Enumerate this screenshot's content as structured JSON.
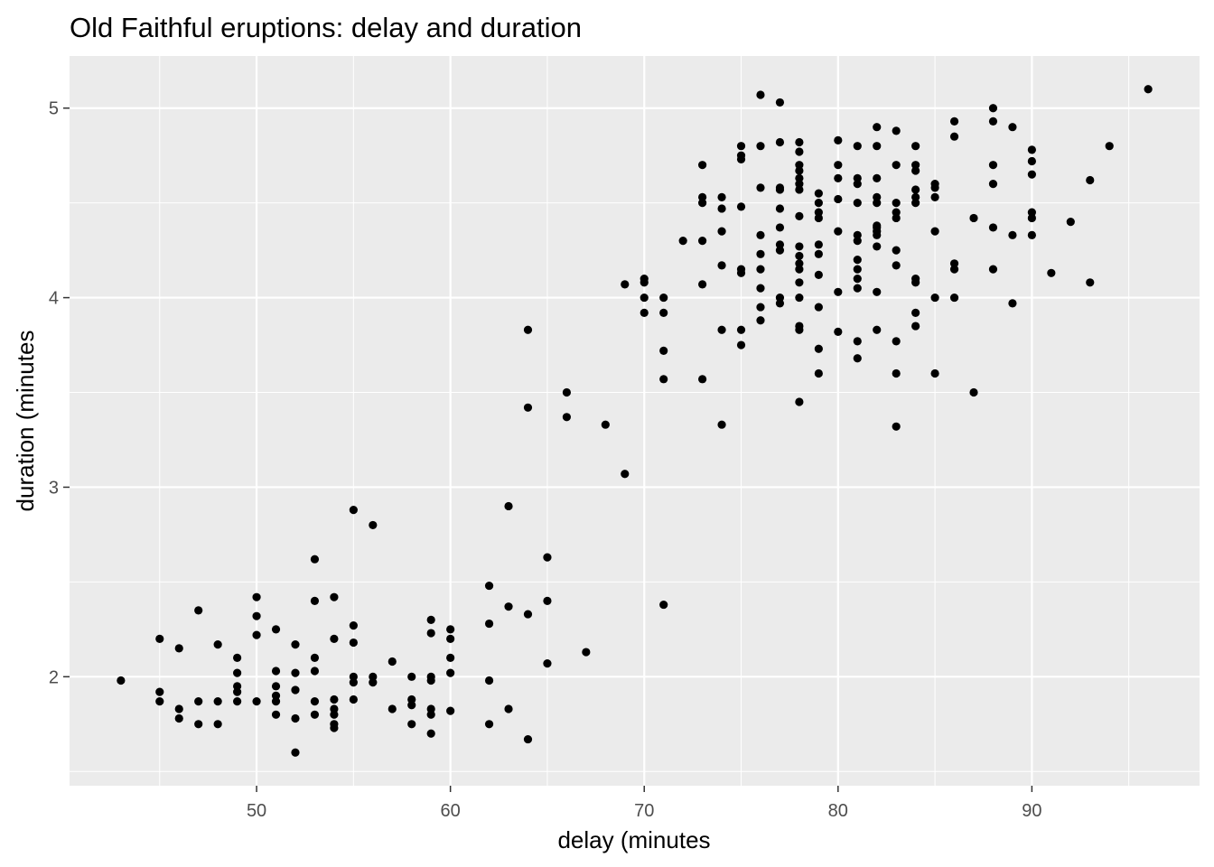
{
  "chart_data": {
    "type": "scatter",
    "title": "Old Faithful eruptions: delay and duration",
    "xlabel": "delay (minutes",
    "ylabel": "duration (minutes",
    "xlim": [
      40.35,
      98.65
    ],
    "ylim": [
      1.425,
      5.275
    ],
    "x_ticks": [
      50,
      60,
      70,
      80,
      90
    ],
    "y_ticks": [
      2,
      3,
      4,
      5
    ],
    "grid": true,
    "colors": {
      "panel": "#ebebeb",
      "grid": "#ffffff",
      "point": "#000000",
      "tick": "#4d4d4d"
    },
    "points": [
      [
        43,
        1.98
      ],
      [
        45,
        1.87
      ],
      [
        45,
        1.92
      ],
      [
        45,
        2.2
      ],
      [
        46,
        1.78
      ],
      [
        46,
        1.83
      ],
      [
        46,
        2.15
      ],
      [
        47,
        1.75
      ],
      [
        47,
        1.87
      ],
      [
        47,
        2.35
      ],
      [
        48,
        1.75
      ],
      [
        48,
        1.87
      ],
      [
        48,
        2.17
      ],
      [
        49,
        1.87
      ],
      [
        49,
        1.92
      ],
      [
        49,
        1.95
      ],
      [
        49,
        2.02
      ],
      [
        49,
        2.1
      ],
      [
        50,
        1.87
      ],
      [
        50,
        2.22
      ],
      [
        50,
        2.32
      ],
      [
        50,
        2.42
      ],
      [
        51,
        1.8
      ],
      [
        51,
        1.87
      ],
      [
        51,
        1.9
      ],
      [
        51,
        1.95
      ],
      [
        51,
        2.03
      ],
      [
        51,
        2.25
      ],
      [
        52,
        1.6
      ],
      [
        52,
        1.78
      ],
      [
        52,
        1.93
      ],
      [
        52,
        2.02
      ],
      [
        52,
        2.17
      ],
      [
        53,
        1.8
      ],
      [
        53,
        1.87
      ],
      [
        53,
        2.03
      ],
      [
        53,
        2.1
      ],
      [
        53,
        2.4
      ],
      [
        53,
        2.62
      ],
      [
        54,
        1.73
      ],
      [
        54,
        1.75
      ],
      [
        54,
        1.8
      ],
      [
        54,
        1.83
      ],
      [
        54,
        1.88
      ],
      [
        54,
        2.2
      ],
      [
        54,
        2.42
      ],
      [
        55,
        1.88
      ],
      [
        55,
        1.97
      ],
      [
        55,
        2.0
      ],
      [
        55,
        2.18
      ],
      [
        55,
        2.27
      ],
      [
        55,
        2.88
      ],
      [
        56,
        1.97
      ],
      [
        56,
        2.0
      ],
      [
        56,
        2.8
      ],
      [
        57,
        1.83
      ],
      [
        57,
        2.08
      ],
      [
        58,
        1.75
      ],
      [
        58,
        1.85
      ],
      [
        58,
        1.88
      ],
      [
        58,
        2.0
      ],
      [
        59,
        1.7
      ],
      [
        59,
        1.8
      ],
      [
        59,
        1.83
      ],
      [
        59,
        1.98
      ],
      [
        59,
        2.0
      ],
      [
        59,
        2.23
      ],
      [
        59,
        2.3
      ],
      [
        60,
        1.82
      ],
      [
        60,
        2.02
      ],
      [
        60,
        2.1
      ],
      [
        60,
        2.2
      ],
      [
        60,
        2.25
      ],
      [
        62,
        1.75
      ],
      [
        62,
        1.98
      ],
      [
        62,
        2.28
      ],
      [
        62,
        2.48
      ],
      [
        63,
        1.83
      ],
      [
        63,
        2.37
      ],
      [
        63,
        2.9
      ],
      [
        64,
        1.67
      ],
      [
        64,
        2.33
      ],
      [
        64,
        3.42
      ],
      [
        64,
        3.83
      ],
      [
        65,
        2.07
      ],
      [
        65,
        2.4
      ],
      [
        65,
        2.63
      ],
      [
        66,
        3.37
      ],
      [
        66,
        3.5
      ],
      [
        67,
        2.13
      ],
      [
        68,
        3.33
      ],
      [
        69,
        3.07
      ],
      [
        69,
        4.07
      ],
      [
        70,
        3.92
      ],
      [
        70,
        4.0
      ],
      [
        70,
        4.08
      ],
      [
        70,
        4.1
      ],
      [
        71,
        2.38
      ],
      [
        71,
        3.57
      ],
      [
        71,
        3.72
      ],
      [
        71,
        3.92
      ],
      [
        71,
        4.0
      ],
      [
        72,
        4.3
      ],
      [
        73,
        3.57
      ],
      [
        73,
        4.07
      ],
      [
        73,
        4.3
      ],
      [
        73,
        4.5
      ],
      [
        73,
        4.53
      ],
      [
        73,
        4.7
      ],
      [
        74,
        3.33
      ],
      [
        74,
        3.83
      ],
      [
        74,
        4.17
      ],
      [
        74,
        4.35
      ],
      [
        74,
        4.47
      ],
      [
        74,
        4.53
      ],
      [
        75,
        3.75
      ],
      [
        75,
        3.83
      ],
      [
        75,
        4.13
      ],
      [
        75,
        4.15
      ],
      [
        75,
        4.48
      ],
      [
        75,
        4.73
      ],
      [
        75,
        4.75
      ],
      [
        75,
        4.8
      ],
      [
        76,
        3.88
      ],
      [
        76,
        3.95
      ],
      [
        76,
        4.05
      ],
      [
        76,
        4.15
      ],
      [
        76,
        4.23
      ],
      [
        76,
        4.33
      ],
      [
        76,
        4.58
      ],
      [
        76,
        4.8
      ],
      [
        76,
        5.07
      ],
      [
        77,
        3.97
      ],
      [
        77,
        4.0
      ],
      [
        77,
        4.25
      ],
      [
        77,
        4.28
      ],
      [
        77,
        4.37
      ],
      [
        77,
        4.47
      ],
      [
        77,
        4.57
      ],
      [
        77,
        4.58
      ],
      [
        77,
        4.82
      ],
      [
        77,
        5.03
      ],
      [
        78,
        3.45
      ],
      [
        78,
        3.83
      ],
      [
        78,
        3.85
      ],
      [
        78,
        4.0
      ],
      [
        78,
        4.08
      ],
      [
        78,
        4.15
      ],
      [
        78,
        4.18
      ],
      [
        78,
        4.22
      ],
      [
        78,
        4.27
      ],
      [
        78,
        4.43
      ],
      [
        78,
        4.57
      ],
      [
        78,
        4.6
      ],
      [
        78,
        4.63
      ],
      [
        78,
        4.67
      ],
      [
        78,
        4.7
      ],
      [
        78,
        4.77
      ],
      [
        78,
        4.82
      ],
      [
        79,
        3.6
      ],
      [
        79,
        3.73
      ],
      [
        79,
        3.95
      ],
      [
        79,
        4.12
      ],
      [
        79,
        4.23
      ],
      [
        79,
        4.28
      ],
      [
        79,
        4.42
      ],
      [
        79,
        4.45
      ],
      [
        79,
        4.5
      ],
      [
        79,
        4.55
      ],
      [
        80,
        3.82
      ],
      [
        80,
        4.03
      ],
      [
        80,
        4.35
      ],
      [
        80,
        4.52
      ],
      [
        80,
        4.63
      ],
      [
        80,
        4.7
      ],
      [
        80,
        4.83
      ],
      [
        81,
        3.68
      ],
      [
        81,
        3.77
      ],
      [
        81,
        4.05
      ],
      [
        81,
        4.1
      ],
      [
        81,
        4.15
      ],
      [
        81,
        4.2
      ],
      [
        81,
        4.3
      ],
      [
        81,
        4.33
      ],
      [
        81,
        4.5
      ],
      [
        81,
        4.6
      ],
      [
        81,
        4.63
      ],
      [
        81,
        4.8
      ],
      [
        82,
        3.83
      ],
      [
        82,
        4.03
      ],
      [
        82,
        4.27
      ],
      [
        82,
        4.33
      ],
      [
        82,
        4.35
      ],
      [
        82,
        4.37
      ],
      [
        82,
        4.38
      ],
      [
        82,
        4.5
      ],
      [
        82,
        4.53
      ],
      [
        82,
        4.63
      ],
      [
        82,
        4.8
      ],
      [
        82,
        4.9
      ],
      [
        83,
        3.32
      ],
      [
        83,
        3.6
      ],
      [
        83,
        3.77
      ],
      [
        83,
        4.17
      ],
      [
        83,
        4.25
      ],
      [
        83,
        4.42
      ],
      [
        83,
        4.45
      ],
      [
        83,
        4.5
      ],
      [
        83,
        4.7
      ],
      [
        83,
        4.88
      ],
      [
        84,
        3.85
      ],
      [
        84,
        3.92
      ],
      [
        84,
        4.08
      ],
      [
        84,
        4.1
      ],
      [
        84,
        4.5
      ],
      [
        84,
        4.53
      ],
      [
        84,
        4.57
      ],
      [
        84,
        4.67
      ],
      [
        84,
        4.7
      ],
      [
        84,
        4.8
      ],
      [
        85,
        3.6
      ],
      [
        85,
        4.0
      ],
      [
        85,
        4.35
      ],
      [
        85,
        4.53
      ],
      [
        85,
        4.58
      ],
      [
        85,
        4.6
      ],
      [
        86,
        4.0
      ],
      [
        86,
        4.15
      ],
      [
        86,
        4.18
      ],
      [
        86,
        4.85
      ],
      [
        86,
        4.93
      ],
      [
        87,
        3.5
      ],
      [
        87,
        4.42
      ],
      [
        88,
        4.15
      ],
      [
        88,
        4.37
      ],
      [
        88,
        4.6
      ],
      [
        88,
        4.7
      ],
      [
        88,
        4.93
      ],
      [
        88,
        5.0
      ],
      [
        89,
        3.97
      ],
      [
        89,
        4.33
      ],
      [
        89,
        4.9
      ],
      [
        90,
        4.33
      ],
      [
        90,
        4.42
      ],
      [
        90,
        4.45
      ],
      [
        90,
        4.65
      ],
      [
        90,
        4.72
      ],
      [
        90,
        4.78
      ],
      [
        91,
        4.13
      ],
      [
        92,
        4.4
      ],
      [
        93,
        4.08
      ],
      [
        93,
        4.62
      ],
      [
        94,
        4.8
      ],
      [
        96,
        5.1
      ]
    ]
  }
}
